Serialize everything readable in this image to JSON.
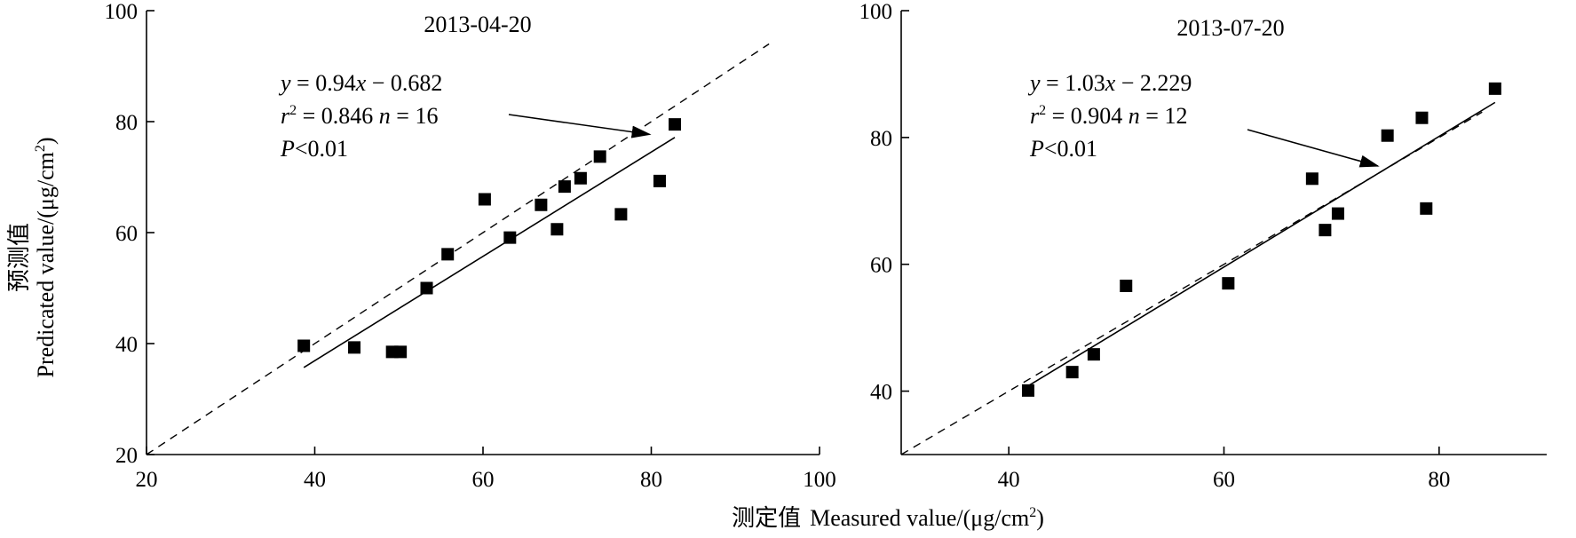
{
  "figure": {
    "ylabel_cn": "预测值",
    "ylabel_en": "Predicated value/(μg/cm",
    "ylabel_sup": "2",
    "ylabel_close": ")",
    "xlabel_cn": "测定值",
    "xlabel_en": "Measured value/(μg/cm",
    "xlabel_sup": "2",
    "xlabel_close": ")"
  },
  "chart_data": [
    {
      "type": "scatter",
      "title": "2013-04-20",
      "xlim": [
        20,
        100
      ],
      "ylim": [
        20,
        100
      ],
      "xticks": [
        20,
        40,
        60,
        80,
        100
      ],
      "yticks": [
        20,
        40,
        60,
        80,
        100
      ],
      "grid": false,
      "marker": "square",
      "points": [
        [
          38.7,
          39.6
        ],
        [
          44.7,
          39.3
        ],
        [
          49.2,
          38.5
        ],
        [
          50.2,
          38.5
        ],
        [
          53.3,
          50.0
        ],
        [
          55.8,
          56.1
        ],
        [
          60.2,
          66.0
        ],
        [
          63.2,
          59.1
        ],
        [
          66.9,
          65.0
        ],
        [
          68.8,
          60.6
        ],
        [
          69.7,
          68.3
        ],
        [
          71.6,
          69.8
        ],
        [
          73.9,
          73.7
        ],
        [
          76.4,
          63.3
        ],
        [
          81.0,
          69.3
        ],
        [
          82.8,
          79.5
        ]
      ],
      "fit_line": {
        "slope": 0.94,
        "intercept": -0.682,
        "x_range": [
          38.7,
          82.8
        ]
      },
      "reference_line": {
        "label": "1:1",
        "x_range": [
          20,
          94
        ]
      },
      "annotation": {
        "equation": {
          "y": "y",
          "eq1": " = 0.94",
          "x": "x",
          "eq2": " − 0.682"
        },
        "stats": {
          "r": "r",
          "sup": "2",
          "val": " = 0.846  ",
          "n": "n",
          "nval": " = 16"
        },
        "p": {
          "p": "P",
          "val": "<0.01"
        },
        "arrow_to": [
          79.8,
          77.7
        ]
      }
    },
    {
      "type": "scatter",
      "title": "2013-07-20",
      "xlim": [
        30,
        90
      ],
      "ylim": [
        30,
        100
      ],
      "xticks": [
        40,
        60,
        80
      ],
      "yticks": [
        40,
        60,
        80,
        100
      ],
      "grid": false,
      "marker": "square",
      "points": [
        [
          41.8,
          40.1
        ],
        [
          45.9,
          43.0
        ],
        [
          47.9,
          45.8
        ],
        [
          50.9,
          56.6
        ],
        [
          60.4,
          57.0
        ],
        [
          68.2,
          73.5
        ],
        [
          69.4,
          65.4
        ],
        [
          70.6,
          68.0
        ],
        [
          75.2,
          80.3
        ],
        [
          78.4,
          83.1
        ],
        [
          78.8,
          68.8
        ],
        [
          85.2,
          87.7
        ]
      ],
      "fit_line": {
        "slope": 1.03,
        "intercept": -2.229,
        "x_range": [
          41.8,
          85.2
        ]
      },
      "reference_line": {
        "label": "1:1",
        "x_range": [
          30,
          84
        ]
      },
      "annotation": {
        "equation": {
          "y": "y",
          "eq1": " = 1.03",
          "x": "x",
          "eq2": " − 2.229"
        },
        "stats": {
          "r": "r",
          "sup": "2",
          "val": " = 0.904  ",
          "n": "n",
          "nval": " = 12"
        },
        "p": {
          "p": "P",
          "val": "<0.01"
        },
        "arrow_to": [
          74.3,
          75.5
        ]
      }
    }
  ]
}
